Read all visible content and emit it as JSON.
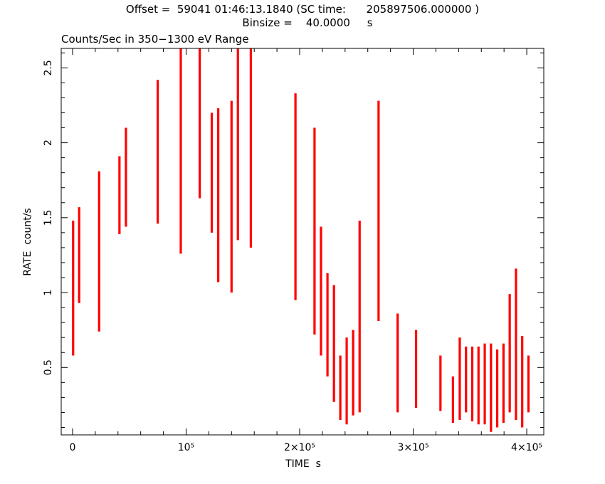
{
  "chart_data": {
    "type": "line",
    "header_line1": "Offset =  59041 01:46:13.1840 (SC time:      205897506.000000 )",
    "header_line2": "Binsize =    40.0000     s",
    "title": "Counts/Sec in 350−1300 eV Range",
    "xlabel": "TIME  s",
    "ylabel": "RATE  count/s",
    "xlim": [
      -10000,
      415000
    ],
    "ylim": [
      0.05,
      2.63
    ],
    "x_ticks": [
      {
        "value": 0,
        "label": "0"
      },
      {
        "value": 100000,
        "label": "10⁵"
      },
      {
        "value": 200000,
        "label": "2×10⁵"
      },
      {
        "value": 300000,
        "label": "3×10⁵"
      },
      {
        "value": 400000,
        "label": "4×10⁵"
      }
    ],
    "y_ticks": [
      {
        "value": 0.5,
        "label": "0.5"
      },
      {
        "value": 1,
        "label": "1"
      },
      {
        "value": 1.5,
        "label": "1.5"
      },
      {
        "value": 2,
        "label": "2"
      },
      {
        "value": 2.5,
        "label": "2.5"
      }
    ],
    "series_color": "#ff0000",
    "segments": [
      {
        "x": 500,
        "ylow": 0.58,
        "yhigh": 1.48
      },
      {
        "x": 5800,
        "ylow": 0.93,
        "yhigh": 1.57
      },
      {
        "x": 23400,
        "ylow": 0.74,
        "yhigh": 1.81
      },
      {
        "x": 41300,
        "ylow": 1.39,
        "yhigh": 1.91
      },
      {
        "x": 47000,
        "ylow": 1.44,
        "yhigh": 2.1
      },
      {
        "x": 75000,
        "ylow": 1.46,
        "yhigh": 2.42
      },
      {
        "x": 95300,
        "ylow": 1.26,
        "yhigh": 2.63
      },
      {
        "x": 112000,
        "ylow": 1.63,
        "yhigh": 2.63
      },
      {
        "x": 122600,
        "ylow": 1.4,
        "yhigh": 2.2
      },
      {
        "x": 128300,
        "ylow": 1.07,
        "yhigh": 2.23
      },
      {
        "x": 140000,
        "ylow": 1.0,
        "yhigh": 2.28
      },
      {
        "x": 145600,
        "ylow": 1.35,
        "yhigh": 2.63
      },
      {
        "x": 157000,
        "ylow": 1.3,
        "yhigh": 2.63
      },
      {
        "x": 196300,
        "ylow": 0.95,
        "yhigh": 2.33
      },
      {
        "x": 213100,
        "ylow": 0.72,
        "yhigh": 2.1
      },
      {
        "x": 218800,
        "ylow": 0.58,
        "yhigh": 1.44
      },
      {
        "x": 224500,
        "ylow": 0.44,
        "yhigh": 1.13
      },
      {
        "x": 230200,
        "ylow": 0.27,
        "yhigh": 1.05
      },
      {
        "x": 235800,
        "ylow": 0.15,
        "yhigh": 0.58
      },
      {
        "x": 241400,
        "ylow": 0.12,
        "yhigh": 0.7
      },
      {
        "x": 247100,
        "ylow": 0.18,
        "yhigh": 0.75
      },
      {
        "x": 252800,
        "ylow": 0.2,
        "yhigh": 1.48
      },
      {
        "x": 269500,
        "ylow": 0.81,
        "yhigh": 2.28
      },
      {
        "x": 286300,
        "ylow": 0.2,
        "yhigh": 0.86
      },
      {
        "x": 302500,
        "ylow": 0.23,
        "yhigh": 0.75
      },
      {
        "x": 324000,
        "ylow": 0.21,
        "yhigh": 0.58
      },
      {
        "x": 335000,
        "ylow": 0.13,
        "yhigh": 0.44
      },
      {
        "x": 341000,
        "ylow": 0.15,
        "yhigh": 0.7
      },
      {
        "x": 346500,
        "ylow": 0.2,
        "yhigh": 0.64
      },
      {
        "x": 352000,
        "ylow": 0.14,
        "yhigh": 0.64
      },
      {
        "x": 357500,
        "ylow": 0.12,
        "yhigh": 0.64
      },
      {
        "x": 363000,
        "ylow": 0.12,
        "yhigh": 0.66
      },
      {
        "x": 368500,
        "ylow": 0.07,
        "yhigh": 0.66
      },
      {
        "x": 374000,
        "ylow": 0.1,
        "yhigh": 0.62
      },
      {
        "x": 379500,
        "ylow": 0.13,
        "yhigh": 0.66
      },
      {
        "x": 385000,
        "ylow": 0.2,
        "yhigh": 0.99
      },
      {
        "x": 390500,
        "ylow": 0.15,
        "yhigh": 1.16
      },
      {
        "x": 396000,
        "ylow": 0.1,
        "yhigh": 0.71
      },
      {
        "x": 401500,
        "ylow": 0.2,
        "yhigh": 0.58
      }
    ]
  }
}
